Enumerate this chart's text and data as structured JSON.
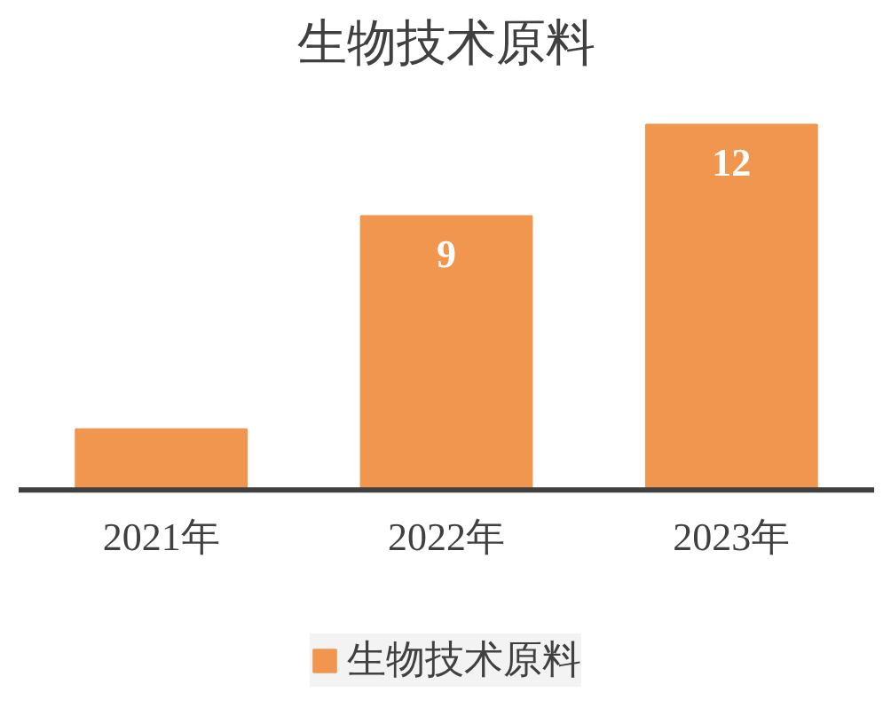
{
  "chart_data": {
    "type": "bar",
    "title": "生物技术原料",
    "categories": [
      "2021年",
      "2022年",
      "2023年"
    ],
    "series": [
      {
        "name": "生物技术原料",
        "color": "#f0964f",
        "values": [
          2,
          9,
          12
        ],
        "value_labels": [
          null,
          "9",
          "12"
        ]
      }
    ],
    "legend": "bottom"
  }
}
